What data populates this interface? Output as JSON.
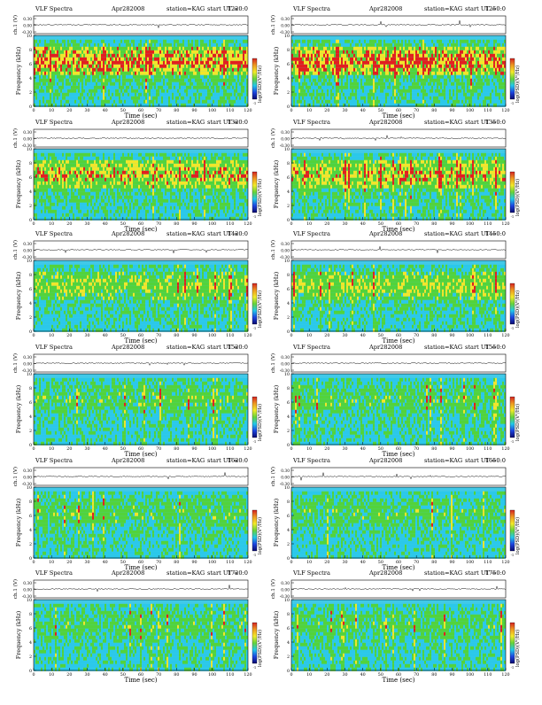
{
  "common": {
    "program": "VLF Spectra",
    "date": "Apr282008",
    "station": "station=KAG",
    "ut_prefix": "start  UT =",
    "ch_label": "ch.1",
    "ch_unit": "(V)",
    "ylabel": "Frequency (kHz)",
    "xlabel": "Time  (sec)",
    "cbar_label": "log(PSD)(V²/Hz)"
  },
  "colors": {
    "background": "#4ccfe6",
    "low": "#2bc8ea",
    "mid": "#52d33c",
    "high": "#f2e62a",
    "peak": "#e21f1f",
    "colorbar": [
      "#d52222",
      "#ee9a22",
      "#f2ea2a",
      "#66d33a",
      "#22c8ea",
      "#1d45e0",
      "#0a0a70"
    ]
  },
  "chart_data": [
    {
      "type": "heatmap",
      "title": "VLF Spectra  Apr282008  station=KAG  start UT =1220:0",
      "start_ut": "1220:0",
      "x": {
        "label": "Time  (sec)",
        "range": [
          0,
          120
        ],
        "ticks": [
          0,
          10,
          20,
          30,
          40,
          50,
          60,
          70,
          80,
          90,
          100,
          110,
          120
        ]
      },
      "y": {
        "label": "Frequency (kHz)",
        "range": [
          0,
          10
        ],
        "ticks": [
          0,
          2,
          4,
          6,
          8,
          10
        ]
      },
      "ch_ticks": [
        "0.30",
        "0.00",
        "-0.30"
      ],
      "cbar_ticks": [
        "-1",
        "-"
      ],
      "intensity": 0.9
    },
    {
      "type": "heatmap",
      "title": "VLF Spectra  Apr282008  station=KAG  start UT =1250:0",
      "start_ut": "1250:0",
      "x": {
        "label": "Time  (sec)",
        "range": [
          0,
          120
        ],
        "ticks": [
          0,
          10,
          20,
          30,
          40,
          50,
          60,
          70,
          80,
          90,
          100,
          110,
          120
        ]
      },
      "y": {
        "label": "Frequency (kHz)",
        "range": [
          0,
          10
        ],
        "ticks": [
          0,
          2,
          4,
          6,
          8,
          10
        ]
      },
      "ch_ticks": [
        "0.30",
        "0.00",
        "-0.30"
      ],
      "cbar_ticks": [
        "-1",
        "-"
      ],
      "intensity": 0.9
    },
    {
      "type": "heatmap",
      "title": "VLF Spectra  Apr282008  station=KAG  start UT =1320:0",
      "start_ut": "1320:0",
      "x": {
        "label": "Time  (sec)",
        "range": [
          0,
          120
        ],
        "ticks": [
          0,
          10,
          20,
          30,
          40,
          50,
          60,
          70,
          80,
          90,
          100,
          110,
          120
        ]
      },
      "y": {
        "label": "Frequency (kHz)",
        "range": [
          0,
          10
        ],
        "ticks": [
          0,
          2,
          4,
          6,
          8,
          10
        ]
      },
      "ch_ticks": [
        "0.30",
        "0.00",
        "-0.30"
      ],
      "cbar_ticks": [
        "-1",
        "-"
      ],
      "intensity": 0.72
    },
    {
      "type": "heatmap",
      "title": "VLF Spectra  Apr282008  station=KAG  start UT =1350:0",
      "start_ut": "1350:0",
      "x": {
        "label": "Time  (sec)",
        "range": [
          0,
          120
        ],
        "ticks": [
          0,
          10,
          20,
          30,
          40,
          50,
          60,
          70,
          80,
          90,
          100,
          110,
          120
        ]
      },
      "y": {
        "label": "Frequency (kHz)",
        "range": [
          0,
          10
        ],
        "ticks": [
          0,
          2,
          4,
          6,
          8,
          10
        ]
      },
      "ch_ticks": [
        "0.30",
        "0.00",
        "-0.30"
      ],
      "cbar_ticks": [
        "-1",
        "-"
      ],
      "intensity": 0.7
    },
    {
      "type": "heatmap",
      "title": "VLF Spectra  Apr282008  station=KAG  start UT =1420:0",
      "start_ut": "1420:0",
      "x": {
        "label": "Time  (sec)",
        "range": [
          0,
          120
        ],
        "ticks": [
          0,
          10,
          20,
          30,
          40,
          50,
          60,
          70,
          80,
          90,
          100,
          110,
          120
        ]
      },
      "y": {
        "label": "Frequency (kHz)",
        "range": [
          0,
          10
        ],
        "ticks": [
          0,
          2,
          4,
          6,
          8,
          10
        ]
      },
      "ch_ticks": [
        "0.30",
        "0.00",
        "-0.30"
      ],
      "cbar_ticks": [
        "-1",
        "-"
      ],
      "intensity": 0.5
    },
    {
      "type": "heatmap",
      "title": "VLF Spectra  Apr282008  station=KAG  start UT =1450:0",
      "start_ut": "1450:0",
      "x": {
        "label": "Time  (sec)",
        "range": [
          0,
          120
        ],
        "ticks": [
          0,
          10,
          20,
          30,
          40,
          50,
          60,
          70,
          80,
          90,
          100,
          110,
          120
        ]
      },
      "y": {
        "label": "Frequency (kHz)",
        "range": [
          0,
          10
        ],
        "ticks": [
          0,
          2,
          4,
          6,
          8,
          10
        ]
      },
      "ch_ticks": [
        "0.30",
        "0.00",
        "-0.30"
      ],
      "cbar_ticks": [
        "-1",
        "-"
      ],
      "intensity": 0.55
    },
    {
      "type": "heatmap",
      "title": "VLF Spectra  Apr282008  station=KAG  start UT =1520:0",
      "start_ut": "1520:0",
      "x": {
        "label": "Time  (sec)",
        "range": [
          0,
          120
        ],
        "ticks": [
          0,
          10,
          20,
          30,
          40,
          50,
          60,
          70,
          80,
          90,
          100,
          110,
          120
        ]
      },
      "y": {
        "label": "Frequency (kHz)",
        "range": [
          0,
          10
        ],
        "ticks": [
          0,
          2,
          4,
          6,
          8,
          10
        ]
      },
      "ch_ticks": [
        "0.30",
        "0.00",
        "-0.30"
      ],
      "cbar_ticks": [
        "-1",
        "-"
      ],
      "intensity": 0.35
    },
    {
      "type": "heatmap",
      "title": "VLF Spectra  Apr282008  station=KAG  start UT =1550:0",
      "start_ut": "1550:0",
      "x": {
        "label": "Time  (sec)",
        "range": [
          0,
          120
        ],
        "ticks": [
          0,
          10,
          20,
          30,
          40,
          50,
          60,
          70,
          80,
          90,
          100,
          110,
          120
        ]
      },
      "y": {
        "label": "Frequency (kHz)",
        "range": [
          0,
          10
        ],
        "ticks": [
          0,
          2,
          4,
          6,
          8,
          10
        ]
      },
      "ch_ticks": [
        "0.30",
        "0.00",
        "-0.30"
      ],
      "cbar_ticks": [
        "-1",
        "-"
      ],
      "intensity": 0.33
    },
    {
      "type": "heatmap",
      "title": "VLF Spectra  Apr282008  station=KAG  start UT =1620:0",
      "start_ut": "1620:0",
      "x": {
        "label": "Time  (sec)",
        "range": [
          0,
          120
        ],
        "ticks": [
          0,
          10,
          20,
          30,
          40,
          50,
          60,
          70,
          80,
          90,
          100,
          110,
          120
        ]
      },
      "y": {
        "label": "Frequency (kHz)",
        "range": [
          0,
          10
        ],
        "ticks": [
          0,
          2,
          4,
          6,
          8,
          10
        ]
      },
      "ch_ticks": [
        "0.30",
        "0.00",
        "-0.30"
      ],
      "cbar_ticks": [
        "-1",
        "-"
      ],
      "intensity": 0.35
    },
    {
      "type": "heatmap",
      "title": "VLF Spectra  Apr282008  station=KAG  start UT =1650:0",
      "start_ut": "1650:0",
      "x": {
        "label": "Time  (sec)",
        "range": [
          0,
          120
        ],
        "ticks": [
          0,
          10,
          20,
          30,
          40,
          50,
          60,
          70,
          80,
          90,
          100,
          110,
          120
        ]
      },
      "y": {
        "label": "Frequency (kHz)",
        "range": [
          0,
          10
        ],
        "ticks": [
          0,
          2,
          4,
          6,
          8,
          10
        ]
      },
      "ch_ticks": [
        "0.30",
        "0.00",
        "-0.30"
      ],
      "cbar_ticks": [
        "-1",
        "-"
      ],
      "intensity": 0.33
    },
    {
      "type": "heatmap",
      "title": "VLF Spectra  Apr282008  station=KAG  start UT =1720:0",
      "start_ut": "1720:0",
      "x": {
        "label": "Time  (sec)",
        "range": [
          0,
          120
        ],
        "ticks": [
          0,
          10,
          20,
          30,
          40,
          50,
          60,
          70,
          80,
          90,
          100,
          110,
          120
        ]
      },
      "y": {
        "label": "Frequency (kHz)",
        "range": [
          0,
          10
        ],
        "ticks": [
          0,
          2,
          4,
          6,
          8,
          10
        ]
      },
      "ch_ticks": [
        "0.30",
        "0.00",
        "-0.30"
      ],
      "cbar_ticks": [
        "-1",
        "-"
      ],
      "intensity": 0.3
    },
    {
      "type": "heatmap",
      "title": "VLF Spectra  Apr282008  station=KAG  start UT =1750:0",
      "start_ut": "1750:0",
      "x": {
        "label": "Time  (sec)",
        "range": [
          0,
          120
        ],
        "ticks": [
          0,
          10,
          20,
          30,
          40,
          50,
          60,
          70,
          80,
          90,
          100,
          110,
          120
        ]
      },
      "y": {
        "label": "Frequency (kHz)",
        "range": [
          0,
          10
        ],
        "ticks": [
          0,
          2,
          4,
          6,
          8,
          10
        ]
      },
      "ch_ticks": [
        "0.30",
        "0.00",
        "-0.30"
      ],
      "cbar_ticks": [
        "-1",
        "-"
      ],
      "intensity": 0.3
    }
  ]
}
